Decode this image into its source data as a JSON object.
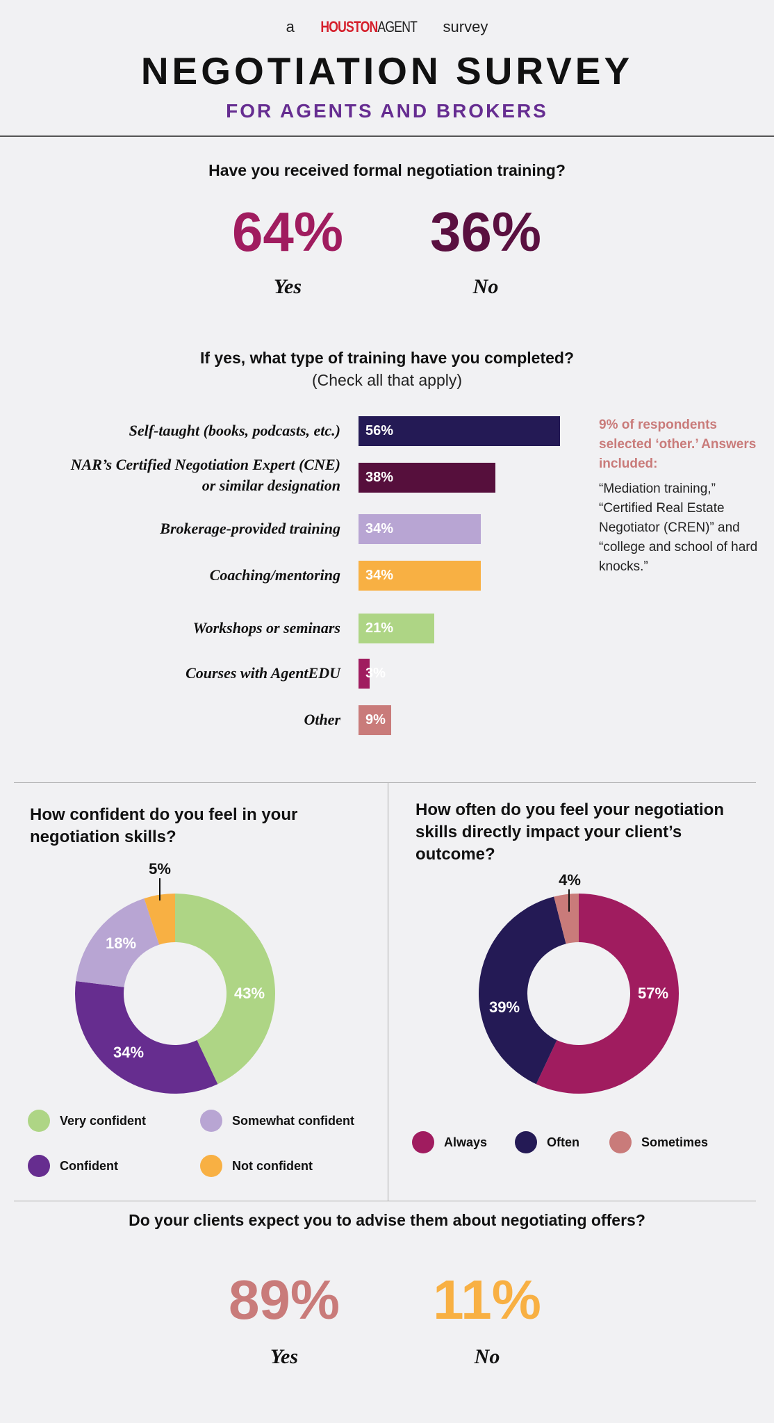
{
  "header": {
    "prefix": "a",
    "logo_part1": "HOUSTON",
    "logo_part2": "AGENT",
    "suffix": "survey",
    "title": "NEGOTIATION SURVEY",
    "subtitle": "FOR AGENTS AND BROKERS"
  },
  "q1": {
    "question": "Have you received formal negotiation training?",
    "yes_value": "64%",
    "yes_label": "Yes",
    "no_value": "36%",
    "no_label": "No"
  },
  "q2": {
    "question": "If yes, what type of training have you completed?",
    "sub": "(Check all that apply)",
    "note_heading": "9% of respondents selected ‘other.’ Answers included:",
    "note_body": "“Mediation training,” “Certified Real Estate Negotiator (CREN)” and “college and school of hard knocks.”"
  },
  "chart_data": [
    {
      "type": "bar",
      "orientation": "horizontal",
      "title": "If yes, what type of training have you completed?",
      "categories": [
        "Self-taught (books, podcasts, etc.)",
        "NAR’s Certified Negotiation Expert (CNE) or similar designation",
        "Brokerage-provided training",
        "Coaching/mentoring",
        "Workshops or seminars",
        "Courses with AgentEDU",
        "Other"
      ],
      "values": [
        56,
        38,
        34,
        34,
        21,
        3,
        9
      ],
      "value_labels": [
        "56%",
        "38%",
        "34%",
        "34%",
        "21%",
        "3%",
        "9%"
      ],
      "colors": [
        "#241a55",
        "#560f3c",
        "#b8a5d3",
        "#f8b043",
        "#aed585",
        "#a01c5f",
        "#c97b7a"
      ]
    },
    {
      "type": "pie",
      "donut": true,
      "title": "How confident do you feel in your negotiation skills?",
      "labels": [
        "Very confident",
        "Confident",
        "Somewhat confident",
        "Not confident"
      ],
      "values": [
        43,
        34,
        18,
        5
      ],
      "value_labels": [
        "43%",
        "34%",
        "18%",
        "5%"
      ],
      "colors": [
        "#aed585",
        "#662d8f",
        "#b8a5d3",
        "#f8b043"
      ],
      "legend": "bottom"
    },
    {
      "type": "pie",
      "donut": true,
      "title": "How often do you feel your negotiation skills directly impact your client’s outcome?",
      "labels": [
        "Always",
        "Often",
        "Sometimes"
      ],
      "values": [
        57,
        39,
        4
      ],
      "value_labels": [
        "57%",
        "39%",
        "4%"
      ],
      "colors": [
        "#a01c5f",
        "#241a55",
        "#c97b7a"
      ],
      "legend": "bottom"
    }
  ],
  "q5": {
    "question": "Do your clients expect you to advise them about negotiating offers?",
    "yes_value": "89%",
    "yes_label": "Yes",
    "no_value": "11%",
    "no_label": "No"
  },
  "colors": {
    "yes1": "#a01c5f",
    "no1": "#5a1040",
    "yes5": "#c97b7a",
    "no5": "#f8b043",
    "subtitle": "#662d91"
  }
}
